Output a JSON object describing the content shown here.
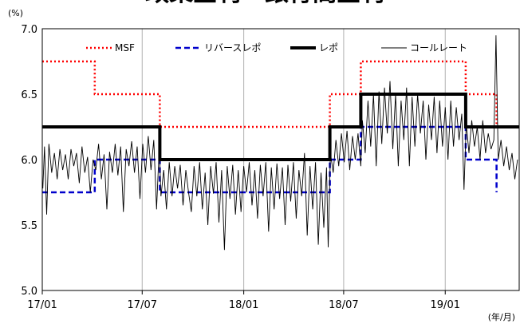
{
  "chart_data": {
    "type": "line",
    "title": "政策金利・銀行間金利",
    "yunit": "(%)",
    "xunit": "(年/月)",
    "ylim": [
      5.0,
      7.0
    ],
    "yticks": [
      "5.0",
      "5.5",
      "6.0",
      "6.5",
      "7.0"
    ],
    "xlim": [
      "2017-01-01",
      "2019-05-15"
    ],
    "xticks": [
      {
        "date": "2017-01-01",
        "label": "17/01"
      },
      {
        "date": "2017-07-01",
        "label": "17/07"
      },
      {
        "date": "2018-01-01",
        "label": "18/01"
      },
      {
        "date": "2018-07-01",
        "label": "18/07"
      },
      {
        "date": "2019-01-01",
        "label": "19/01"
      }
    ],
    "grid": "vertical",
    "legend_position": "top",
    "series": [
      {
        "name": "MSF",
        "style": "dotted",
        "color": "#ff0000",
        "points": [
          [
            "2017-01-01",
            6.75
          ],
          [
            "2017-04-06",
            6.75
          ],
          [
            "2017-04-06",
            6.5
          ],
          [
            "2017-08-02",
            6.5
          ],
          [
            "2017-08-02",
            6.25
          ],
          [
            "2018-06-06",
            6.25
          ],
          [
            "2018-06-06",
            6.5
          ],
          [
            "2018-08-01",
            6.5
          ],
          [
            "2018-08-01",
            6.75
          ],
          [
            "2019-02-07",
            6.75
          ],
          [
            "2019-02-07",
            6.5
          ],
          [
            "2019-04-04",
            6.5
          ],
          [
            "2019-04-04",
            6.25
          ]
        ]
      },
      {
        "name": "リバースレポ",
        "style": "dashed",
        "color": "#0000cc",
        "points": [
          [
            "2017-01-01",
            5.75
          ],
          [
            "2017-04-06",
            5.75
          ],
          [
            "2017-04-06",
            6.0
          ],
          [
            "2017-08-02",
            6.0
          ],
          [
            "2017-08-02",
            5.75
          ],
          [
            "2018-06-06",
            5.75
          ],
          [
            "2018-06-06",
            6.0
          ],
          [
            "2018-08-01",
            6.0
          ],
          [
            "2018-08-01",
            6.25
          ],
          [
            "2019-02-07",
            6.25
          ],
          [
            "2019-02-07",
            6.0
          ],
          [
            "2019-04-04",
            6.0
          ],
          [
            "2019-04-04",
            5.75
          ]
        ]
      },
      {
        "name": "レポ",
        "style": "thick",
        "color": "#000000",
        "points": [
          [
            "2017-01-01",
            6.25
          ],
          [
            "2017-08-02",
            6.25
          ],
          [
            "2017-08-02",
            6.0
          ],
          [
            "2018-06-06",
            6.0
          ],
          [
            "2018-06-06",
            6.25
          ],
          [
            "2018-08-01",
            6.25
          ],
          [
            "2018-08-01",
            6.5
          ],
          [
            "2019-02-07",
            6.5
          ],
          [
            "2019-02-07",
            6.25
          ],
          [
            "2019-05-15",
            6.25
          ]
        ]
      },
      {
        "name": "コールレート",
        "style": "thin",
        "color": "#000000",
        "points": [
          [
            "2017-01-02",
            5.78
          ],
          [
            "2017-01-05",
            6.1
          ],
          [
            "2017-01-09",
            5.58
          ],
          [
            "2017-01-13",
            6.12
          ],
          [
            "2017-01-18",
            5.9
          ],
          [
            "2017-01-23",
            6.05
          ],
          [
            "2017-01-28",
            5.85
          ],
          [
            "2017-02-02",
            6.08
          ],
          [
            "2017-02-07",
            5.92
          ],
          [
            "2017-02-12",
            6.04
          ],
          [
            "2017-02-17",
            5.85
          ],
          [
            "2017-02-22",
            6.08
          ],
          [
            "2017-02-27",
            5.95
          ],
          [
            "2017-03-04",
            6.05
          ],
          [
            "2017-03-09",
            5.82
          ],
          [
            "2017-03-14",
            6.1
          ],
          [
            "2017-03-19",
            5.9
          ],
          [
            "2017-03-24",
            6.02
          ],
          [
            "2017-03-29",
            5.75
          ],
          [
            "2017-04-03",
            6.0
          ],
          [
            "2017-04-08",
            5.92
          ],
          [
            "2017-04-13",
            6.12
          ],
          [
            "2017-04-18",
            5.85
          ],
          [
            "2017-04-23",
            6.04
          ],
          [
            "2017-04-28",
            5.62
          ],
          [
            "2017-05-03",
            6.06
          ],
          [
            "2017-05-08",
            5.9
          ],
          [
            "2017-05-13",
            6.12
          ],
          [
            "2017-05-18",
            5.88
          ],
          [
            "2017-05-23",
            6.1
          ],
          [
            "2017-05-28",
            5.6
          ],
          [
            "2017-06-02",
            6.08
          ],
          [
            "2017-06-07",
            5.95
          ],
          [
            "2017-06-12",
            6.14
          ],
          [
            "2017-06-17",
            5.9
          ],
          [
            "2017-06-22",
            6.1
          ],
          [
            "2017-06-27",
            5.7
          ],
          [
            "2017-07-02",
            6.12
          ],
          [
            "2017-07-07",
            5.9
          ],
          [
            "2017-07-12",
            6.18
          ],
          [
            "2017-07-17",
            5.92
          ],
          [
            "2017-07-22",
            6.15
          ],
          [
            "2017-07-27",
            5.62
          ],
          [
            "2017-08-01",
            6.1
          ],
          [
            "2017-08-04",
            5.72
          ],
          [
            "2017-08-09",
            5.92
          ],
          [
            "2017-08-14",
            5.62
          ],
          [
            "2017-08-19",
            5.98
          ],
          [
            "2017-08-24",
            5.72
          ],
          [
            "2017-08-29",
            5.95
          ],
          [
            "2017-09-03",
            5.78
          ],
          [
            "2017-09-08",
            5.96
          ],
          [
            "2017-09-13",
            5.65
          ],
          [
            "2017-09-18",
            5.92
          ],
          [
            "2017-09-23",
            5.75
          ],
          [
            "2017-09-28",
            5.6
          ],
          [
            "2017-10-03",
            5.95
          ],
          [
            "2017-10-08",
            5.72
          ],
          [
            "2017-10-13",
            5.98
          ],
          [
            "2017-10-18",
            5.62
          ],
          [
            "2017-10-23",
            5.9
          ],
          [
            "2017-10-28",
            5.5
          ],
          [
            "2017-11-02",
            5.95
          ],
          [
            "2017-11-07",
            5.74
          ],
          [
            "2017-11-12",
            5.98
          ],
          [
            "2017-11-17",
            5.52
          ],
          [
            "2017-11-22",
            5.92
          ],
          [
            "2017-11-27",
            5.31
          ],
          [
            "2017-12-02",
            5.95
          ],
          [
            "2017-12-07",
            5.7
          ],
          [
            "2017-12-12",
            5.96
          ],
          [
            "2017-12-17",
            5.58
          ],
          [
            "2017-12-22",
            5.92
          ],
          [
            "2017-12-27",
            5.6
          ],
          [
            "2018-01-01",
            5.95
          ],
          [
            "2018-01-06",
            5.75
          ],
          [
            "2018-01-11",
            5.98
          ],
          [
            "2018-01-16",
            5.65
          ],
          [
            "2018-01-21",
            5.92
          ],
          [
            "2018-01-26",
            5.55
          ],
          [
            "2018-01-31",
            5.96
          ],
          [
            "2018-02-05",
            5.72
          ],
          [
            "2018-02-10",
            5.98
          ],
          [
            "2018-02-15",
            5.45
          ],
          [
            "2018-02-20",
            5.94
          ],
          [
            "2018-02-25",
            5.62
          ],
          [
            "2018-03-02",
            5.97
          ],
          [
            "2018-03-07",
            5.7
          ],
          [
            "2018-03-12",
            5.94
          ],
          [
            "2018-03-17",
            5.5
          ],
          [
            "2018-03-22",
            5.96
          ],
          [
            "2018-03-27",
            5.68
          ],
          [
            "2018-04-01",
            5.98
          ],
          [
            "2018-04-06",
            5.55
          ],
          [
            "2018-04-11",
            5.92
          ],
          [
            "2018-04-16",
            5.72
          ],
          [
            "2018-04-21",
            6.05
          ],
          [
            "2018-04-26",
            5.42
          ],
          [
            "2018-05-01",
            5.95
          ],
          [
            "2018-05-06",
            5.62
          ],
          [
            "2018-05-11",
            5.98
          ],
          [
            "2018-05-16",
            5.35
          ],
          [
            "2018-05-21",
            5.9
          ],
          [
            "2018-05-26",
            5.48
          ],
          [
            "2018-05-31",
            5.94
          ],
          [
            "2018-06-03",
            5.33
          ],
          [
            "2018-06-07",
            6.05
          ],
          [
            "2018-06-12",
            5.9
          ],
          [
            "2018-06-17",
            6.15
          ],
          [
            "2018-06-22",
            5.95
          ],
          [
            "2018-06-27",
            6.2
          ],
          [
            "2018-07-02",
            5.98
          ],
          [
            "2018-07-07",
            6.22
          ],
          [
            "2018-07-12",
            5.92
          ],
          [
            "2018-07-17",
            6.18
          ],
          [
            "2018-07-22",
            6.0
          ],
          [
            "2018-07-27",
            6.2
          ],
          [
            "2018-08-01",
            5.95
          ],
          [
            "2018-08-04",
            6.3
          ],
          [
            "2018-08-09",
            6.05
          ],
          [
            "2018-08-14",
            6.45
          ],
          [
            "2018-08-19",
            6.1
          ],
          [
            "2018-08-24",
            6.5
          ],
          [
            "2018-08-29",
            5.95
          ],
          [
            "2018-09-03",
            6.52
          ],
          [
            "2018-09-08",
            6.12
          ],
          [
            "2018-09-13",
            6.55
          ],
          [
            "2018-09-18",
            6.2
          ],
          [
            "2018-09-23",
            6.6
          ],
          [
            "2018-09-28",
            6.08
          ],
          [
            "2018-10-03",
            6.5
          ],
          [
            "2018-10-08",
            5.95
          ],
          [
            "2018-10-13",
            6.45
          ],
          [
            "2018-10-18",
            6.15
          ],
          [
            "2018-10-23",
            6.55
          ],
          [
            "2018-10-28",
            5.95
          ],
          [
            "2018-11-02",
            6.48
          ],
          [
            "2018-11-07",
            6.1
          ],
          [
            "2018-11-12",
            6.5
          ],
          [
            "2018-11-17",
            6.2
          ],
          [
            "2018-11-22",
            6.45
          ],
          [
            "2018-11-27",
            6.0
          ],
          [
            "2018-12-02",
            6.42
          ],
          [
            "2018-12-07",
            6.15
          ],
          [
            "2018-12-12",
            6.48
          ],
          [
            "2018-12-17",
            6.05
          ],
          [
            "2018-12-22",
            6.45
          ],
          [
            "2018-12-27",
            6.1
          ],
          [
            "2019-01-01",
            6.4
          ],
          [
            "2019-01-06",
            6.0
          ],
          [
            "2019-01-11",
            6.45
          ],
          [
            "2019-01-16",
            6.1
          ],
          [
            "2019-01-21",
            6.4
          ],
          [
            "2019-01-26",
            6.15
          ],
          [
            "2019-01-31",
            6.35
          ],
          [
            "2019-02-04",
            5.77
          ],
          [
            "2019-02-08",
            6.28
          ],
          [
            "2019-02-13",
            6.05
          ],
          [
            "2019-02-18",
            6.3
          ],
          [
            "2019-02-23",
            6.1
          ],
          [
            "2019-02-28",
            6.25
          ],
          [
            "2019-03-05",
            6.0
          ],
          [
            "2019-03-10",
            6.3
          ],
          [
            "2019-03-15",
            6.05
          ],
          [
            "2019-03-20",
            6.2
          ],
          [
            "2019-03-25",
            6.08
          ],
          [
            "2019-03-30",
            6.15
          ],
          [
            "2019-04-03",
            6.95
          ],
          [
            "2019-04-07",
            6.0
          ],
          [
            "2019-04-12",
            6.15
          ],
          [
            "2019-04-17",
            5.95
          ],
          [
            "2019-04-22",
            6.1
          ],
          [
            "2019-04-27",
            5.92
          ],
          [
            "2019-05-02",
            6.05
          ],
          [
            "2019-05-07",
            5.85
          ],
          [
            "2019-05-12",
            6.0
          ]
        ]
      }
    ]
  }
}
